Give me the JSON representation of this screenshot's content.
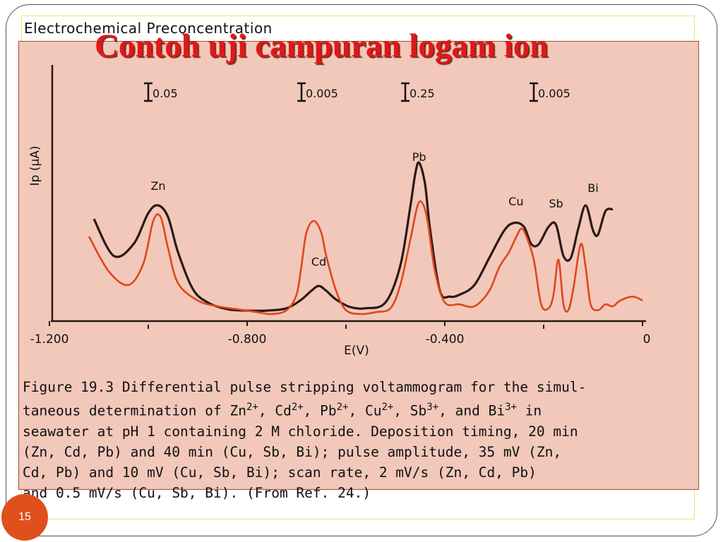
{
  "slide": {
    "book_header": "Electrochemical Preconcentration",
    "title": "Contoh uji campuran logam ion",
    "page_number": "15",
    "colors": {
      "title": "#e01818",
      "figure_bg": "#f2c8bb",
      "badge": "#e0501c"
    }
  },
  "caption": {
    "line1": "Figure 19.3  Differential pulse stripping voltammogram for the simul-",
    "line2_pre": "taneous determination of Zn",
    "sup_zn": "2+",
    "sep1": ", Cd",
    "sup_cd": "2+",
    "sep2": ", Pb",
    "sup_pb": "2+",
    "sep3": ", Cu",
    "sup_cu": "2+",
    "sep4": ", Sb",
    "sup_sb": "3+",
    "sep5": ", and Bi",
    "sup_bi": "3+",
    "line2_post": " in",
    "line3": "seawater at pH 1 containing 2 M chloride.  Deposition timing, 20 min",
    "line4": "(Zn, Cd, Pb) and 40 min (Cu, Sb, Bi); pulse amplitude, 35 mV (Zn,",
    "line5": "Cd, Pb) and 10 mV (Cu, Sb, Bi); scan rate, 2 mV/s (Zn, Cd, Pb)",
    "line6": "and 0.5 mV/s (Cu, Sb, Bi).  (From Ref. 24.)"
  },
  "chart_data": {
    "type": "line",
    "xlabel": "E(V)",
    "ylabel": "Ip (μA)",
    "xlim": [
      -1.2,
      0.0
    ],
    "ylim": [
      0,
      1
    ],
    "x_ticks": [
      {
        "value": -1.2,
        "label": "-1.200"
      },
      {
        "value": -0.8,
        "label": "-0.800"
      },
      {
        "value": -0.4,
        "label": "-0.400"
      },
      {
        "value": 0.0,
        "label": "0"
      }
    ],
    "x_minor_ticks": [
      -1.0,
      -0.6,
      -0.2
    ],
    "scale_bars": [
      {
        "x": -1.0,
        "label": "0.05"
      },
      {
        "x": -0.69,
        "label": "0.005"
      },
      {
        "x": -0.48,
        "label": "0.25"
      },
      {
        "x": -0.22,
        "label": "0.005"
      }
    ],
    "peak_labels": [
      {
        "label": "Zn",
        "x": -0.98,
        "y": 0.64
      },
      {
        "label": "Cd",
        "x": -0.655,
        "y": 0.25
      },
      {
        "label": "Pb",
        "x": -0.452,
        "y": 0.79
      },
      {
        "label": "Cu",
        "x": -0.256,
        "y": 0.56
      },
      {
        "label": "Sb",
        "x": -0.175,
        "y": 0.55
      },
      {
        "label": "Bi",
        "x": -0.1,
        "y": 0.63
      }
    ],
    "series": [
      {
        "color": "#2a1a14",
        "x": [
          -1.11,
          -1.07,
          -1.03,
          -1.0,
          -0.98,
          -0.96,
          -0.94,
          -0.91,
          -0.88,
          -0.84,
          -0.8,
          -0.76,
          -0.72,
          -0.69,
          -0.67,
          -0.655,
          -0.64,
          -0.62,
          -0.59,
          -0.56,
          -0.52,
          -0.49,
          -0.47,
          -0.46,
          -0.452,
          -0.44,
          -0.43,
          -0.41,
          -0.39,
          -0.37,
          -0.34,
          -0.31,
          -0.28,
          -0.26,
          -0.24,
          -0.225,
          -0.21,
          -0.19,
          -0.175,
          -0.16,
          -0.145,
          -0.13,
          -0.115,
          -0.1,
          -0.09,
          -0.075,
          -0.06
        ],
        "y": [
          0.49,
          0.3,
          0.36,
          0.52,
          0.56,
          0.5,
          0.32,
          0.13,
          0.06,
          0.025,
          0.018,
          0.018,
          0.03,
          0.075,
          0.12,
          0.145,
          0.12,
          0.075,
          0.035,
          0.03,
          0.06,
          0.25,
          0.55,
          0.72,
          0.78,
          0.67,
          0.44,
          0.12,
          0.09,
          0.1,
          0.15,
          0.29,
          0.43,
          0.47,
          0.45,
          0.36,
          0.36,
          0.45,
          0.46,
          0.3,
          0.29,
          0.44,
          0.56,
          0.43,
          0.41,
          0.53,
          0.54
        ]
      },
      {
        "color": "#e0461a",
        "x": [
          -1.12,
          -1.08,
          -1.04,
          -1.01,
          -0.99,
          -0.975,
          -0.96,
          -0.94,
          -0.9,
          -0.86,
          -0.82,
          -0.78,
          -0.75,
          -0.72,
          -0.7,
          -0.69,
          -0.68,
          -0.665,
          -0.65,
          -0.64,
          -0.62,
          -0.6,
          -0.57,
          -0.54,
          -0.51,
          -0.49,
          -0.47,
          -0.455,
          -0.445,
          -0.435,
          -0.42,
          -0.4,
          -0.37,
          -0.34,
          -0.31,
          -0.29,
          -0.27,
          -0.255,
          -0.245,
          -0.235,
          -0.22,
          -0.205,
          -0.19,
          -0.18,
          -0.17,
          -0.16,
          -0.15,
          -0.14,
          -0.125,
          -0.115,
          -0.105,
          -0.09,
          -0.075,
          -0.06,
          -0.045,
          -0.02,
          0.0
        ],
        "y": [
          0.4,
          0.22,
          0.15,
          0.26,
          0.48,
          0.5,
          0.34,
          0.16,
          0.07,
          0.04,
          0.025,
          0.01,
          0.0,
          0.02,
          0.1,
          0.25,
          0.42,
          0.48,
          0.42,
          0.3,
          0.12,
          0.02,
          0.0,
          0.01,
          0.03,
          0.15,
          0.38,
          0.56,
          0.57,
          0.48,
          0.22,
          0.06,
          0.05,
          0.04,
          0.12,
          0.24,
          0.32,
          0.4,
          0.44,
          0.4,
          0.28,
          0.05,
          0.03,
          0.1,
          0.28,
          0.05,
          0.02,
          0.13,
          0.36,
          0.24,
          0.05,
          0.02,
          0.05,
          0.04,
          0.07,
          0.09,
          0.07
        ]
      }
    ]
  }
}
